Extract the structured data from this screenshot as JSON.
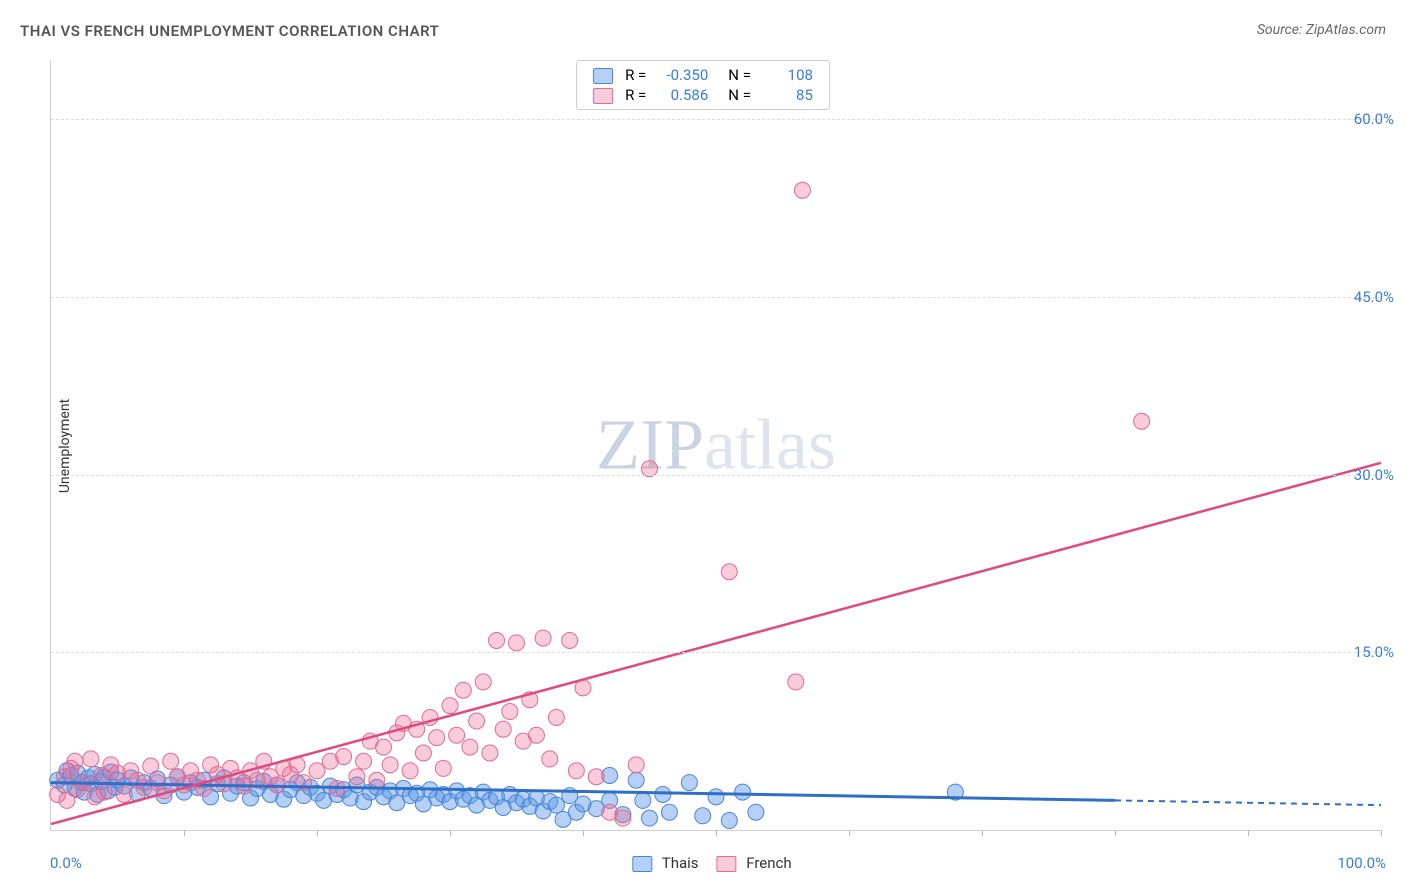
{
  "title": "THAI VS FRENCH UNEMPLOYMENT CORRELATION CHART",
  "source": "Source: ZipAtlas.com",
  "ylabel": "Unemployment",
  "watermark_a": "ZIP",
  "watermark_b": "atlas",
  "xaxis": {
    "min_label": "0.0%",
    "max_label": "100.0%",
    "xmin": 0,
    "xmax": 100,
    "ticks": [
      0,
      10,
      20,
      30,
      40,
      50,
      60,
      70,
      80,
      90,
      100
    ]
  },
  "yaxis": {
    "ymin": 0,
    "ymax": 65,
    "ticks": [
      {
        "v": 15,
        "label": "15.0%"
      },
      {
        "v": 30,
        "label": "30.0%"
      },
      {
        "v": 45,
        "label": "45.0%"
      },
      {
        "v": 60,
        "label": "60.0%"
      }
    ]
  },
  "colors": {
    "blue_fill": "rgba(90,150,230,0.45)",
    "blue_stroke": "#4a86d8",
    "pink_fill": "rgba(235,110,150,0.35)",
    "pink_stroke": "#e26a95",
    "blue_line": "#2f6fc7",
    "pink_line": "#e04a7e",
    "text_blue": "#3b7dd8"
  },
  "marker_radius": 8,
  "series": [
    {
      "key": "thais",
      "label": "Thais",
      "swatch_fill": "rgba(90,150,230,0.45)",
      "swatch_border": "#4a86d8",
      "R_label": "R =",
      "R_value": "-0.350",
      "N_label": "N =",
      "N_value": "108",
      "trend": {
        "x1": 0,
        "y1": 4.0,
        "x2": 80,
        "y2": 2.5,
        "x3": 100,
        "y3": 2.1,
        "dashed_from": 80
      },
      "points": [
        [
          0.5,
          4.2
        ],
        [
          1,
          3.8
        ],
        [
          1.2,
          5.0
        ],
        [
          1.5,
          4.6
        ],
        [
          1.8,
          3.5
        ],
        [
          2,
          4.8
        ],
        [
          2.3,
          4.0
        ],
        [
          2.5,
          3.2
        ],
        [
          2.8,
          4.4
        ],
        [
          3,
          3.9
        ],
        [
          3.3,
          4.7
        ],
        [
          3.5,
          3.0
        ],
        [
          3.8,
          4.1
        ],
        [
          4,
          4.5
        ],
        [
          4.3,
          3.3
        ],
        [
          4.5,
          4.9
        ],
        [
          4.8,
          3.6
        ],
        [
          5,
          4.2
        ],
        [
          5.5,
          3.7
        ],
        [
          6,
          4.4
        ],
        [
          6.5,
          3.1
        ],
        [
          7,
          4.0
        ],
        [
          7.5,
          3.5
        ],
        [
          8,
          4.3
        ],
        [
          8.5,
          2.9
        ],
        [
          9,
          3.8
        ],
        [
          9.5,
          4.5
        ],
        [
          10,
          3.2
        ],
        [
          10.5,
          4.0
        ],
        [
          11,
          3.6
        ],
        [
          11.5,
          4.2
        ],
        [
          12,
          2.8
        ],
        [
          12.5,
          3.9
        ],
        [
          13,
          4.4
        ],
        [
          13.5,
          3.1
        ],
        [
          14,
          3.7
        ],
        [
          14.5,
          4.0
        ],
        [
          15,
          2.7
        ],
        [
          15.5,
          3.5
        ],
        [
          16,
          4.1
        ],
        [
          16.5,
          3.0
        ],
        [
          17,
          3.8
        ],
        [
          17.5,
          2.6
        ],
        [
          18,
          3.4
        ],
        [
          18.5,
          4.0
        ],
        [
          19,
          2.9
        ],
        [
          19.5,
          3.6
        ],
        [
          20,
          3.1
        ],
        [
          20.5,
          2.5
        ],
        [
          21,
          3.7
        ],
        [
          21.5,
          3.0
        ],
        [
          22,
          3.4
        ],
        [
          22.5,
          2.7
        ],
        [
          23,
          3.8
        ],
        [
          23.5,
          2.4
        ],
        [
          24,
          3.2
        ],
        [
          24.5,
          3.6
        ],
        [
          25,
          2.8
        ],
        [
          25.5,
          3.3
        ],
        [
          26,
          2.3
        ],
        [
          26.5,
          3.5
        ],
        [
          27,
          2.9
        ],
        [
          27.5,
          3.1
        ],
        [
          28,
          2.2
        ],
        [
          28.5,
          3.4
        ],
        [
          29,
          2.7
        ],
        [
          29.5,
          3.0
        ],
        [
          30,
          2.4
        ],
        [
          30.5,
          3.3
        ],
        [
          31,
          2.6
        ],
        [
          31.5,
          2.9
        ],
        [
          32,
          2.1
        ],
        [
          32.5,
          3.2
        ],
        [
          33,
          2.5
        ],
        [
          33.5,
          2.8
        ],
        [
          34,
          1.9
        ],
        [
          34.5,
          3.0
        ],
        [
          35,
          2.3
        ],
        [
          35.5,
          2.6
        ],
        [
          36,
          2.0
        ],
        [
          36.5,
          2.7
        ],
        [
          37,
          1.6
        ],
        [
          37.5,
          2.4
        ],
        [
          38,
          2.1
        ],
        [
          38.5,
          0.9
        ],
        [
          39,
          2.9
        ],
        [
          39.5,
          1.5
        ],
        [
          40,
          2.2
        ],
        [
          41,
          1.8
        ],
        [
          42,
          2.5
        ],
        [
          42,
          4.6
        ],
        [
          43,
          1.3
        ],
        [
          44,
          4.2
        ],
        [
          44.5,
          2.5
        ],
        [
          45,
          1.0
        ],
        [
          46,
          3.0
        ],
        [
          46.5,
          1.5
        ],
        [
          48,
          4.0
        ],
        [
          49,
          1.2
        ],
        [
          50,
          2.8
        ],
        [
          51,
          0.8
        ],
        [
          52,
          3.2
        ],
        [
          53,
          1.5
        ],
        [
          68,
          3.2
        ]
      ]
    },
    {
      "key": "french",
      "label": "French",
      "swatch_fill": "rgba(235,110,150,0.35)",
      "swatch_border": "#e26a95",
      "R_label": "R =",
      "R_value": "0.586",
      "N_label": "N =",
      "N_value": "85",
      "trend": {
        "x1": 0,
        "y1": 0.5,
        "x2": 100,
        "y2": 31.0
      },
      "points": [
        [
          0.5,
          3.0
        ],
        [
          1,
          4.5
        ],
        [
          1.2,
          2.5
        ],
        [
          1.5,
          5.2
        ],
        [
          1.8,
          5.8
        ],
        [
          2,
          3.4
        ],
        [
          2.5,
          4.0
        ],
        [
          3,
          6.0
        ],
        [
          3.3,
          2.8
        ],
        [
          3.8,
          4.6
        ],
        [
          4,
          3.2
        ],
        [
          4.5,
          5.5
        ],
        [
          5,
          4.8
        ],
        [
          5.5,
          3.0
        ],
        [
          6,
          5.0
        ],
        [
          6.5,
          4.2
        ],
        [
          7,
          3.6
        ],
        [
          7.5,
          5.4
        ],
        [
          8,
          4.0
        ],
        [
          8.5,
          3.3
        ],
        [
          9,
          5.8
        ],
        [
          9.5,
          4.5
        ],
        [
          10,
          3.8
        ],
        [
          10.5,
          5.0
        ],
        [
          11,
          4.2
        ],
        [
          11.5,
          3.5
        ],
        [
          12,
          5.5
        ],
        [
          12.5,
          4.7
        ],
        [
          13,
          3.9
        ],
        [
          13.5,
          5.2
        ],
        [
          14,
          4.4
        ],
        [
          14.5,
          3.7
        ],
        [
          15,
          5.0
        ],
        [
          15.5,
          4.2
        ],
        [
          16,
          5.8
        ],
        [
          16.5,
          4.5
        ],
        [
          17,
          3.8
        ],
        [
          17.5,
          5.2
        ],
        [
          18,
          4.7
        ],
        [
          18.5,
          5.5
        ],
        [
          19,
          4.0
        ],
        [
          20,
          5.0
        ],
        [
          21,
          5.8
        ],
        [
          21.5,
          3.5
        ],
        [
          22,
          6.2
        ],
        [
          23,
          4.5
        ],
        [
          23.5,
          5.8
        ],
        [
          24,
          7.5
        ],
        [
          24.5,
          4.2
        ],
        [
          25,
          7.0
        ],
        [
          25.5,
          5.5
        ],
        [
          26,
          8.2
        ],
        [
          26.5,
          9.0
        ],
        [
          27,
          5.0
        ],
        [
          27.5,
          8.5
        ],
        [
          28,
          6.5
        ],
        [
          28.5,
          9.5
        ],
        [
          29,
          7.8
        ],
        [
          29.5,
          5.2
        ],
        [
          30,
          10.5
        ],
        [
          30.5,
          8.0
        ],
        [
          31,
          11.8
        ],
        [
          31.5,
          7.0
        ],
        [
          32,
          9.2
        ],
        [
          32.5,
          12.5
        ],
        [
          33,
          6.5
        ],
        [
          33.5,
          16.0
        ],
        [
          34,
          8.5
        ],
        [
          34.5,
          10.0
        ],
        [
          35,
          15.8
        ],
        [
          35.5,
          7.5
        ],
        [
          36,
          11.0
        ],
        [
          36.5,
          8.0
        ],
        [
          37,
          16.2
        ],
        [
          37.5,
          6.0
        ],
        [
          38,
          9.5
        ],
        [
          39,
          16.0
        ],
        [
          39.5,
          5.0
        ],
        [
          40,
          12.0
        ],
        [
          41,
          4.5
        ],
        [
          42,
          1.5
        ],
        [
          43,
          1.0
        ],
        [
          44,
          5.5
        ],
        [
          45,
          30.5
        ],
        [
          51,
          21.8
        ],
        [
          56,
          12.5
        ],
        [
          56.5,
          54.0
        ],
        [
          82,
          34.5
        ]
      ]
    }
  ]
}
